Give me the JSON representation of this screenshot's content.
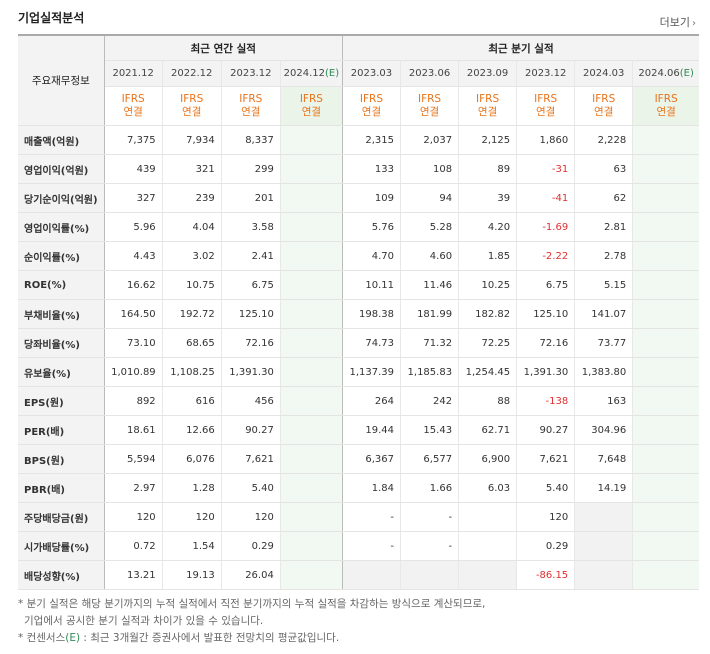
{
  "title": "기업실적분석",
  "more": "더보기",
  "header": {
    "corner": "주요재무정보",
    "annual_group": "최근 연간 실적",
    "quarter_group": "최근 분기 실적",
    "annual_periods": [
      "2021.12",
      "2022.12",
      "2023.12",
      "2024.12"
    ],
    "annual_est_suffix": "(E)",
    "quarter_periods": [
      "2023.03",
      "2023.06",
      "2023.09",
      "2023.12",
      "2024.03",
      "2024.06"
    ],
    "quarter_est_suffix": "(E)",
    "ifrs_line1": "IFRS",
    "ifrs_line2": "연결"
  },
  "rows": [
    {
      "label": "매출액(억원)",
      "annual": [
        "7,375",
        "7,934",
        "8,337",
        ""
      ],
      "quarter": [
        "2,315",
        "2,037",
        "2,125",
        "1,860",
        "2,228",
        ""
      ]
    },
    {
      "label": "영업이익(억원)",
      "annual": [
        "439",
        "321",
        "299",
        ""
      ],
      "quarter": [
        "133",
        "108",
        "89",
        "-31",
        "63",
        ""
      ]
    },
    {
      "label": "당기순이익(억원)",
      "annual": [
        "327",
        "239",
        "201",
        ""
      ],
      "quarter": [
        "109",
        "94",
        "39",
        "-41",
        "62",
        ""
      ]
    },
    {
      "label": "영업이익률(%)",
      "annual": [
        "5.96",
        "4.04",
        "3.58",
        ""
      ],
      "quarter": [
        "5.76",
        "5.28",
        "4.20",
        "-1.69",
        "2.81",
        ""
      ]
    },
    {
      "label": "순이익률(%)",
      "annual": [
        "4.43",
        "3.02",
        "2.41",
        ""
      ],
      "quarter": [
        "4.70",
        "4.60",
        "1.85",
        "-2.22",
        "2.78",
        ""
      ]
    },
    {
      "label": "ROE(%)",
      "annual": [
        "16.62",
        "10.75",
        "6.75",
        ""
      ],
      "quarter": [
        "10.11",
        "11.46",
        "10.25",
        "6.75",
        "5.15",
        ""
      ]
    },
    {
      "label": "부채비율(%)",
      "annual": [
        "164.50",
        "192.72",
        "125.10",
        ""
      ],
      "quarter": [
        "198.38",
        "181.99",
        "182.82",
        "125.10",
        "141.07",
        ""
      ]
    },
    {
      "label": "당좌비율(%)",
      "annual": [
        "73.10",
        "68.65",
        "72.16",
        ""
      ],
      "quarter": [
        "74.73",
        "71.32",
        "72.25",
        "72.16",
        "73.77",
        ""
      ]
    },
    {
      "label": "유보율(%)",
      "annual": [
        "1,010.89",
        "1,108.25",
        "1,391.30",
        ""
      ],
      "quarter": [
        "1,137.39",
        "1,185.83",
        "1,254.45",
        "1,391.30",
        "1,383.80",
        ""
      ]
    },
    {
      "label": "EPS(원)",
      "annual": [
        "892",
        "616",
        "456",
        ""
      ],
      "quarter": [
        "264",
        "242",
        "88",
        "-138",
        "163",
        ""
      ]
    },
    {
      "label": "PER(배)",
      "annual": [
        "18.61",
        "12.66",
        "90.27",
        ""
      ],
      "quarter": [
        "19.44",
        "15.43",
        "62.71",
        "90.27",
        "304.96",
        ""
      ]
    },
    {
      "label": "BPS(원)",
      "annual": [
        "5,594",
        "6,076",
        "7,621",
        ""
      ],
      "quarter": [
        "6,367",
        "6,577",
        "6,900",
        "7,621",
        "7,648",
        ""
      ]
    },
    {
      "label": "PBR(배)",
      "annual": [
        "2.97",
        "1.28",
        "5.40",
        ""
      ],
      "quarter": [
        "1.84",
        "1.66",
        "6.03",
        "5.40",
        "14.19",
        ""
      ]
    },
    {
      "label": "주당배당금(원)",
      "annual": [
        "120",
        "120",
        "120",
        ""
      ],
      "quarter": [
        "-",
        "-",
        "",
        "120",
        "",
        ""
      ]
    },
    {
      "label": "시가배당률(%)",
      "annual": [
        "0.72",
        "1.54",
        "0.29",
        ""
      ],
      "quarter": [
        "-",
        "-",
        "",
        "0.29",
        "",
        ""
      ]
    },
    {
      "label": "배당성향(%)",
      "annual": [
        "13.21",
        "19.13",
        "26.04",
        ""
      ],
      "quarter": [
        "",
        "",
        "",
        "-86.15",
        "",
        ""
      ]
    }
  ],
  "notes": {
    "line1": "* 분기 실적은 해당 분기까지의 누적 실적에서 직전 분기까지의 누적 실적을 차감하는 방식으로 계산되므로,",
    "line2": "기업에서 공시한 분기 실적과 차이가 있을 수 있습니다.",
    "line3_pre": "* 컨센서스",
    "line3_e": "(E)",
    "line3_post": " : 최근 3개월간 증권사에서 발표한 전망치의 평균값입니다."
  }
}
